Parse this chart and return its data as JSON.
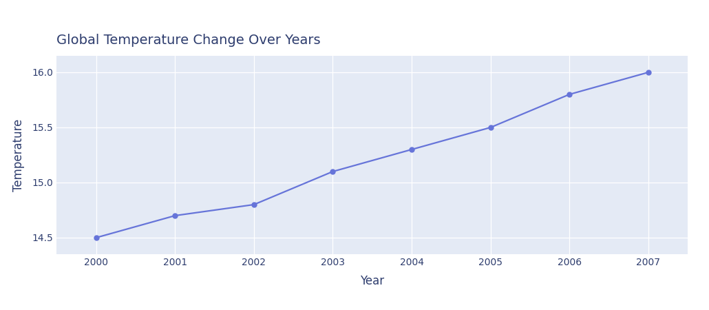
{
  "years": [
    2000,
    2001,
    2002,
    2003,
    2004,
    2005,
    2006,
    2007
  ],
  "temperatures": [
    14.5,
    14.7,
    14.8,
    15.1,
    15.3,
    15.5,
    15.8,
    16.0
  ],
  "title": "Global Temperature Change Over Years",
  "xlabel": "Year",
  "ylabel": "Temperature",
  "line_color": "#6674d9",
  "marker_color": "#6674d9",
  "marker_style": "o",
  "marker_size": 5,
  "line_width": 1.6,
  "plot_bg_color": "#e4eaf5",
  "fig_bg_color": "#ffffff",
  "grid_color": "#ffffff",
  "ylim": [
    14.35,
    16.15
  ],
  "xlim": [
    1999.5,
    2007.5
  ],
  "yticks": [
    14.5,
    15.0,
    15.5,
    16.0
  ],
  "title_fontsize": 14,
  "label_fontsize": 12,
  "tick_fontsize": 10,
  "title_color": "#2e3d6e",
  "axis_label_color": "#2e3d6e",
  "tick_color": "#2e3d6e"
}
